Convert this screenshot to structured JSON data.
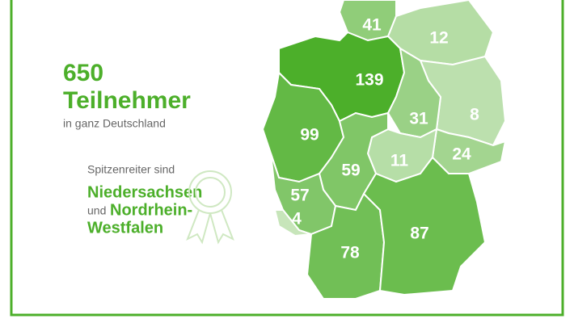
{
  "headline": {
    "count": 650,
    "label": "Teilnehmer",
    "subtitle": "in ganz Deutschland"
  },
  "highlight": {
    "intro": "Spitzenreiter sind",
    "first": "Niedersachsen",
    "conjunction": "und",
    "second_line1": "Nordrhein-",
    "second_line2": "Westfalen"
  },
  "regions": [
    41,
    12,
    139,
    8,
    31,
    99,
    24,
    11,
    59,
    57,
    4,
    78,
    87
  ]
}
